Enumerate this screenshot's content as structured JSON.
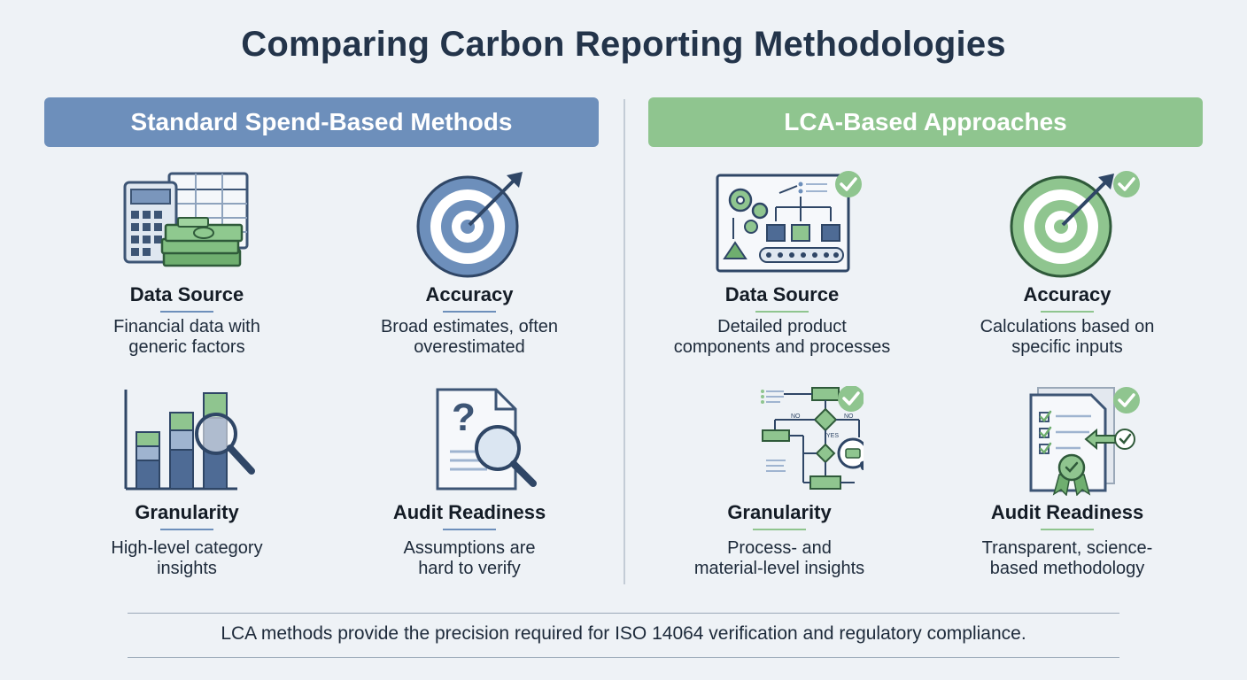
{
  "title": "Comparing Carbon Reporting Methodologies",
  "colors": {
    "blue": "#6d8fbb",
    "green": "#8fc58f",
    "dark": "#23344a",
    "background": "#eef2f6"
  },
  "left": {
    "heading": "Standard Spend-Based Methods",
    "cards": [
      {
        "icon": "calculator-spreadsheet-money-icon",
        "title": "Data Source",
        "desc1": "Financial data with",
        "desc2": "generic factors"
      },
      {
        "icon": "target-icon",
        "title": "Accuracy",
        "desc1": "Broad estimates, often",
        "desc2": "overestimated"
      },
      {
        "icon": "bar-chart-magnifier-icon",
        "title": "Granularity",
        "desc1": "High-level category",
        "desc2": "insights"
      },
      {
        "icon": "document-question-icon",
        "title": "Audit Readiness",
        "desc1": "Assumptions are",
        "desc2": "hard to verify"
      }
    ]
  },
  "right": {
    "heading": "LCA-Based Approaches",
    "cards": [
      {
        "icon": "process-flow-check-icon",
        "title": "Data Source",
        "desc1": "Detailed product",
        "desc2": "components and processes"
      },
      {
        "icon": "target-check-icon",
        "title": "Accuracy",
        "desc1": "Calculations based on",
        "desc2": "specific inputs"
      },
      {
        "icon": "flowchart-check-icon",
        "title": "Granularity",
        "desc1": "Process- and",
        "desc2": "material-level insights"
      },
      {
        "icon": "certified-document-check-icon",
        "title": "Audit Readiness",
        "desc1": "Transparent, science-",
        "desc2": "based methodology"
      }
    ],
    "flow_labels": {
      "no": "NO",
      "yes": "YES"
    }
  },
  "footer": "LCA methods provide the precision required for ISO 14064 verification and regulatory compliance."
}
